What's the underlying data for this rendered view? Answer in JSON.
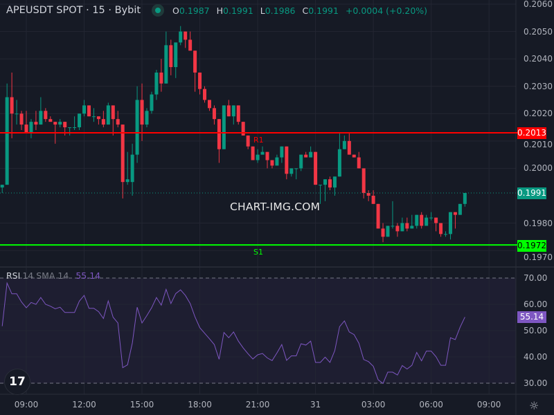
{
  "header": {
    "symbol_title": "APEUSDT SPOT · 15 · Bybit",
    "status_dot_color": "#089981",
    "open_label": "O",
    "open": "0.1987",
    "high_label": "H",
    "high": "0.1991",
    "low_label": "L",
    "low": "0.1986",
    "close_label": "C",
    "close": "0.1991",
    "change": "+0.0004 (+0.20%)"
  },
  "watermark": "CHART-IMG.COM",
  "levels": {
    "r1": {
      "label": "R1",
      "price": "0.2013",
      "color": "#ff0000"
    },
    "s1": {
      "label": "S1",
      "price": "0.1972",
      "color": "#00ff00"
    },
    "last_price": {
      "price": "0.1991",
      "color": "#089981"
    }
  },
  "rsi_legend": {
    "name": "RSI",
    "params": "14 SMA 14",
    "value": "55.14",
    "color": "#7e57c2"
  },
  "colors": {
    "up": "#089981",
    "down": "#f23645",
    "background": "#161a25",
    "grid": "#232632",
    "rsi_line": "#7e57c2"
  },
  "icons": {
    "logo": "tradingview-logo-icon",
    "settings": "gear-icon"
  },
  "logo_text": "17",
  "chart_data": [
    {
      "type": "candlestick",
      "title": "APEUSDT SPOT · 15 · Bybit",
      "y_ticks": [
        "0.2060",
        "0.2050",
        "0.2040",
        "0.2030",
        "0.2020",
        "0.2010",
        "0.2000",
        "0.1980",
        "0.1970"
      ],
      "ylim": [
        0.19685,
        0.2061
      ],
      "grid": true,
      "x_ticks": [
        "09:00",
        "12:00",
        "15:00",
        "18:00",
        "21:00",
        "31",
        "03:00",
        "06:00",
        "09:00"
      ],
      "ohlc": [
        [
          0.1993,
          0.1994,
          0.1991,
          0.1994
        ],
        [
          0.1994,
          0.2031,
          0.1994,
          0.2026
        ],
        [
          0.2026,
          0.2035,
          0.2011,
          0.202
        ],
        [
          0.202,
          0.2025,
          0.2016,
          0.202
        ],
        [
          0.202,
          0.2021,
          0.2014,
          0.2016
        ],
        [
          0.2016,
          0.2021,
          0.2013,
          0.2013
        ],
        [
          0.2013,
          0.2018,
          0.2011,
          0.2017
        ],
        [
          0.2017,
          0.2021,
          0.2014,
          0.2016
        ],
        [
          0.2016,
          0.2026,
          0.2016,
          0.2021
        ],
        [
          0.2021,
          0.2022,
          0.2017,
          0.2018
        ],
        [
          0.2018,
          0.2019,
          0.2017,
          0.2017
        ],
        [
          0.2017,
          0.2017,
          0.2009,
          0.2016
        ],
        [
          0.2016,
          0.2018,
          0.2015,
          0.2017
        ],
        [
          0.2017,
          0.2017,
          0.2012,
          0.2015
        ],
        [
          0.2015,
          0.2015,
          0.2012,
          0.2015
        ],
        [
          0.2015,
          0.2019,
          0.2014,
          0.2015
        ],
        [
          0.2015,
          0.202,
          0.2014,
          0.202
        ],
        [
          0.202,
          0.2025,
          0.2019,
          0.2023
        ],
        [
          0.2023,
          0.2023,
          0.2019,
          0.2019
        ],
        [
          0.2019,
          0.2022,
          0.2017,
          0.2019
        ],
        [
          0.2019,
          0.2019,
          0.2016,
          0.2018
        ],
        [
          0.2018,
          0.2021,
          0.2015,
          0.2016
        ],
        [
          0.2016,
          0.2024,
          0.2016,
          0.2023
        ],
        [
          0.2023,
          0.2023,
          0.2012,
          0.2018
        ],
        [
          0.2018,
          0.2021,
          0.2015,
          0.2016
        ],
        [
          0.2016,
          0.2016,
          0.1989,
          0.1995
        ],
        [
          0.1995,
          0.2006,
          0.1994,
          0.1996
        ],
        [
          0.1995,
          0.2009,
          0.199,
          0.2005
        ],
        [
          0.2005,
          0.203,
          0.2002,
          0.2025
        ],
        [
          0.2025,
          0.2031,
          0.201,
          0.2016
        ],
        [
          0.2016,
          0.2022,
          0.2015,
          0.2021
        ],
        [
          0.2021,
          0.2028,
          0.202,
          0.2027
        ],
        [
          0.2027,
          0.2036,
          0.2025,
          0.2035
        ],
        [
          0.2035,
          0.204,
          0.2028,
          0.2031
        ],
        [
          0.2031,
          0.205,
          0.2031,
          0.2045
        ],
        [
          0.2045,
          0.2047,
          0.2034,
          0.2037
        ],
        [
          0.2037,
          0.2046,
          0.2033,
          0.2046
        ],
        [
          0.2046,
          0.2052,
          0.2045,
          0.205
        ],
        [
          0.205,
          0.205,
          0.2044,
          0.2047
        ],
        [
          0.2047,
          0.205,
          0.2043,
          0.2043
        ],
        [
          0.2043,
          0.2043,
          0.2028,
          0.2035
        ],
        [
          0.2035,
          0.2035,
          0.2027,
          0.2029
        ],
        [
          0.2029,
          0.203,
          0.2024,
          0.2025
        ],
        [
          0.2025,
          0.2025,
          0.2021,
          0.2022
        ],
        [
          0.2022,
          0.2023,
          0.2016,
          0.2018
        ],
        [
          0.2018,
          0.2018,
          0.2002,
          0.2007
        ],
        [
          0.2007,
          0.2023,
          0.2007,
          0.2023
        ],
        [
          0.2023,
          0.2025,
          0.2019,
          0.2019
        ],
        [
          0.2019,
          0.2023,
          0.2016,
          0.2023
        ],
        [
          0.2023,
          0.2023,
          0.2016,
          0.2017
        ],
        [
          0.2017,
          0.2017,
          0.2012,
          0.2012
        ],
        [
          0.2012,
          0.2012,
          0.2007,
          0.2008
        ],
        [
          0.2008,
          0.2008,
          0.2003,
          0.2003
        ],
        [
          0.2003,
          0.2007,
          0.2002,
          0.2005
        ],
        [
          0.2005,
          0.2008,
          0.2005,
          0.2006
        ],
        [
          0.2006,
          0.2006,
          0.2,
          0.2003
        ],
        [
          0.2003,
          0.2003,
          0.2,
          0.2001
        ],
        [
          0.2001,
          0.2005,
          0.2001,
          0.2004
        ],
        [
          0.2004,
          0.2008,
          0.2002,
          0.2008
        ],
        [
          0.2008,
          0.2008,
          0.1996,
          0.1998
        ],
        [
          0.1998,
          0.2,
          0.1997,
          0.2
        ],
        [
          0.2,
          0.2,
          0.1996,
          0.2
        ],
        [
          0.2,
          0.2005,
          0.1999,
          0.2005
        ],
        [
          0.2005,
          0.2006,
          0.2004,
          0.2004
        ],
        [
          0.2004,
          0.2008,
          0.2004,
          0.2006
        ],
        [
          0.2006,
          0.2006,
          0.1994,
          0.1994
        ],
        [
          0.1994,
          0.1994,
          0.1987,
          0.1994
        ],
        [
          0.1994,
          0.1996,
          0.1988,
          0.1996
        ],
        [
          0.1996,
          0.1997,
          0.1992,
          0.1993
        ],
        [
          0.1993,
          0.1997,
          0.199,
          0.1997
        ],
        [
          0.1997,
          0.2013,
          0.1997,
          0.2007
        ],
        [
          0.2007,
          0.2012,
          0.2007,
          0.201
        ],
        [
          0.201,
          0.2013,
          0.2005,
          0.2005
        ],
        [
          0.2005,
          0.2005,
          0.2004,
          0.2004
        ],
        [
          0.2004,
          0.2006,
          0.2,
          0.2
        ],
        [
          0.2,
          0.2,
          0.1989,
          0.1991
        ],
        [
          0.1991,
          0.1992,
          0.1988,
          0.199
        ],
        [
          0.199,
          0.1992,
          0.1987,
          0.1987
        ],
        [
          0.1987,
          0.1987,
          0.1978,
          0.1978
        ],
        [
          0.1978,
          0.198,
          0.1973,
          0.1975
        ],
        [
          0.1975,
          0.1979,
          0.1975,
          0.1979
        ],
        [
          0.1979,
          0.1988,
          0.1978,
          0.1979
        ],
        [
          0.1979,
          0.198,
          0.1975,
          0.1977
        ],
        [
          0.1977,
          0.1982,
          0.1977,
          0.198
        ],
        [
          0.198,
          0.1982,
          0.1977,
          0.1978
        ],
        [
          0.1978,
          0.1983,
          0.1978,
          0.1979
        ],
        [
          0.1979,
          0.1983,
          0.1978,
          0.1983
        ],
        [
          0.1983,
          0.1984,
          0.1978,
          0.1979
        ],
        [
          0.1979,
          0.1983,
          0.1979,
          0.1982
        ],
        [
          0.1982,
          0.1984,
          0.1981,
          0.1982
        ],
        [
          0.1982,
          0.1982,
          0.1977,
          0.198
        ],
        [
          0.198,
          0.198,
          0.1975,
          0.1976
        ],
        [
          0.1976,
          0.1977,
          0.1975,
          0.1976
        ],
        [
          0.1976,
          0.1984,
          0.1974,
          0.1984
        ],
        [
          0.1984,
          0.1984,
          0.1978,
          0.1983
        ],
        [
          0.1983,
          0.1987,
          0.1983,
          0.1987
        ],
        [
          0.1987,
          0.1991,
          0.1986,
          0.1991
        ]
      ]
    },
    {
      "type": "line",
      "title": "RSI 14 SMA 14",
      "ylim": [
        30,
        70
      ],
      "y_ticks": [
        "70.00",
        "60.00",
        "50.00",
        "40.00",
        "30.00"
      ],
      "bands": [
        30,
        70
      ],
      "current_value": "55.14",
      "values": [
        51.7,
        68.1,
        64.0,
        64.0,
        60.9,
        58.7,
        60.7,
        60.0,
        62.6,
        60.0,
        59.3,
        58.3,
        58.9,
        56.9,
        56.9,
        56.9,
        61.2,
        63.4,
        58.5,
        58.5,
        57.2,
        54.6,
        61.3,
        55.1,
        52.9,
        35.9,
        37.0,
        45.3,
        58.9,
        52.9,
        55.7,
        58.7,
        62.6,
        59.7,
        65.7,
        60.3,
        64.1,
        65.5,
        63.4,
        60.3,
        55.2,
        51.1,
        49.0,
        46.9,
        44.7,
        39.1,
        49.3,
        47.3,
        49.5,
        46.0,
        43.4,
        41.2,
        39.2,
        40.8,
        41.3,
        39.6,
        38.6,
        41.5,
        44.7,
        38.7,
        40.4,
        40.4,
        45.0,
        44.5,
        46.0,
        37.9,
        37.9,
        39.9,
        37.9,
        42.4,
        51.5,
        53.7,
        49.5,
        48.5,
        45.2,
        39.0,
        38.2,
        36.4,
        31.3,
        29.9,
        34.2,
        34.2,
        33.1,
        36.7,
        35.4,
        36.8,
        41.7,
        38.5,
        42.2,
        42.2,
        40.1,
        36.8,
        36.8,
        47.3,
        46.6,
        51.3,
        55.14
      ]
    }
  ]
}
